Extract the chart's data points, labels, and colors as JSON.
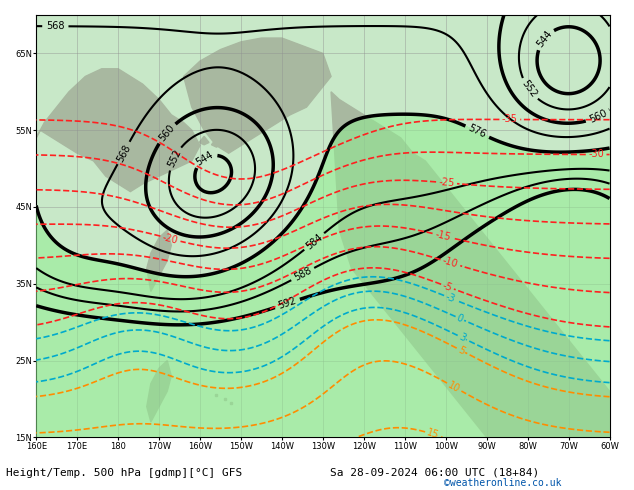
{
  "title_left": "Height/Temp. 500 hPa [gdmp][°C] GFS",
  "title_right": "Sa 28-09-2024 06:00 UTC (18+84)",
  "credit": "©weatheronline.co.uk",
  "ocean_color": "#c8e8c8",
  "land_color": "#a8b8a0",
  "grid_color": "#909090",
  "fig_bg": "#ffffff",
  "xlim": [
    160,
    300
  ],
  "ylim": [
    15,
    70
  ],
  "height_contour_color": "#000000",
  "temp_neg_color": "#ff2020",
  "temp_pos_color": "#ff8c00",
  "temp_cyan_color": "#00aacc",
  "title_fontsize": 8,
  "credit_fontsize": 7,
  "contour_label_fontsize": 7
}
